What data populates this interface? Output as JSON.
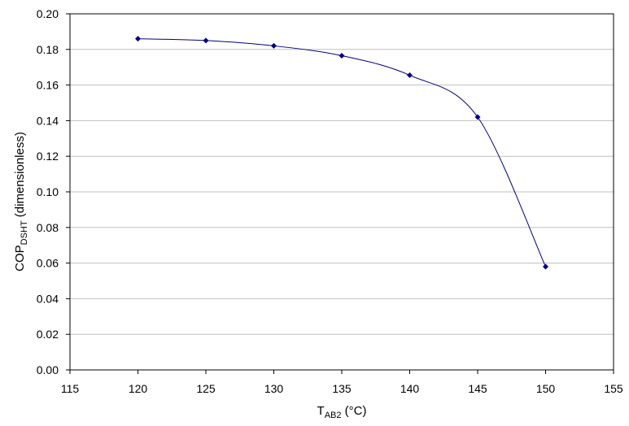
{
  "chart_data": {
    "type": "line",
    "xlabel": {
      "main": "T",
      "sub": "AB2",
      "unit": " (°C)"
    },
    "ylabel": {
      "main": "COP",
      "sub": "DSHT",
      "rest": " (dimensionless)"
    },
    "xlim": [
      115,
      155
    ],
    "ylim": [
      0,
      0.2
    ],
    "xticks": [
      115,
      120,
      125,
      130,
      135,
      140,
      145,
      150,
      155
    ],
    "yticks": [
      "0.00",
      "0.02",
      "0.04",
      "0.06",
      "0.08",
      "0.10",
      "0.12",
      "0.14",
      "0.16",
      "0.18",
      "0.20"
    ],
    "grid": "horizontal",
    "legend": "none",
    "series": [
      {
        "color": "#00007f",
        "x": [
          120,
          125,
          130,
          135,
          140,
          145,
          150
        ],
        "y": [
          0.186,
          0.185,
          0.182,
          0.1765,
          0.1655,
          0.142,
          0.058
        ]
      }
    ]
  }
}
